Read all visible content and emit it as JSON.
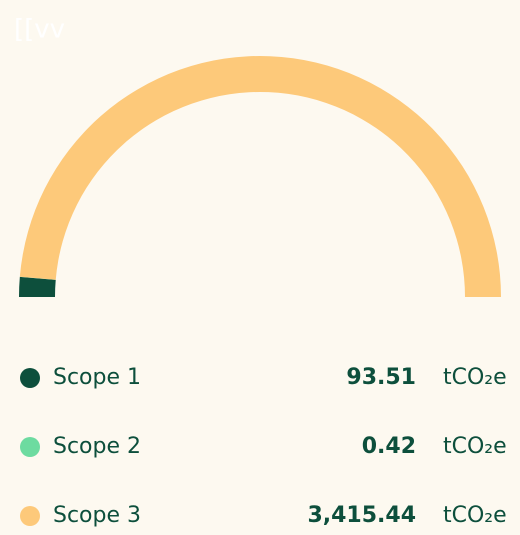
{
  "chart_data": {
    "type": "donut",
    "title": "[[vv",
    "categories": [
      "Scope 1",
      "Scope 2",
      "Scope 3"
    ],
    "values": [
      93.51,
      0.42,
      3415.44
    ],
    "value_labels": [
      "93.51",
      "0.42",
      "3,415.44"
    ],
    "unit": "tCO₂e",
    "colors": [
      "#0d4f3c",
      "#6ddba0",
      "#fdc97a"
    ],
    "half": true
  }
}
